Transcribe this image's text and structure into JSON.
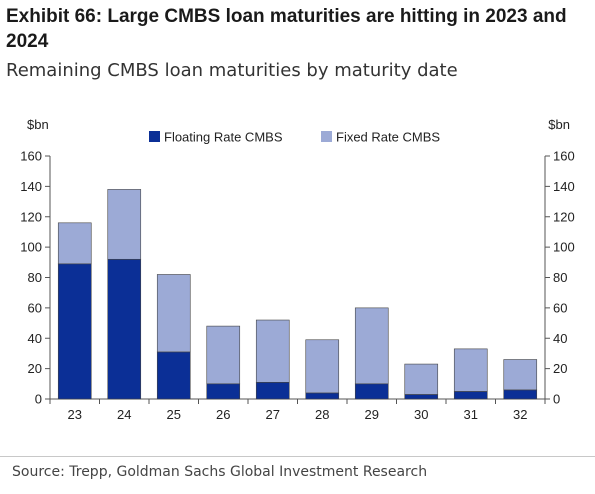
{
  "title": "Exhibit 66: Large CMBS loan maturities are hitting in 2023 and 2024",
  "subtitle": "Remaining CMBS loan maturities by maturity date",
  "source": "Source: Trepp, Goldman Sachs Global Investment Research",
  "colors": {
    "floating": "#0b2f96",
    "fixed": "#9caad6",
    "axis": "#555555"
  },
  "chart_data": {
    "type": "bar",
    "stacked": true,
    "categories": [
      "23",
      "24",
      "25",
      "26",
      "27",
      "28",
      "29",
      "30",
      "31",
      "32"
    ],
    "series": [
      {
        "name": "Floating Rate CMBS",
        "values": [
          89,
          92,
          31,
          10,
          11,
          4,
          10,
          3,
          5,
          6
        ]
      },
      {
        "name": "Fixed Rate CMBS",
        "values": [
          27,
          46,
          51,
          38,
          41,
          35,
          50,
          20,
          28,
          20
        ]
      }
    ],
    "y_unit_left": "$bn",
    "y_unit_right": "$bn",
    "ylim": [
      0,
      160
    ],
    "yticks": [
      0,
      20,
      40,
      60,
      80,
      100,
      120,
      140,
      160
    ],
    "legend_position": "top",
    "grid": false
  }
}
